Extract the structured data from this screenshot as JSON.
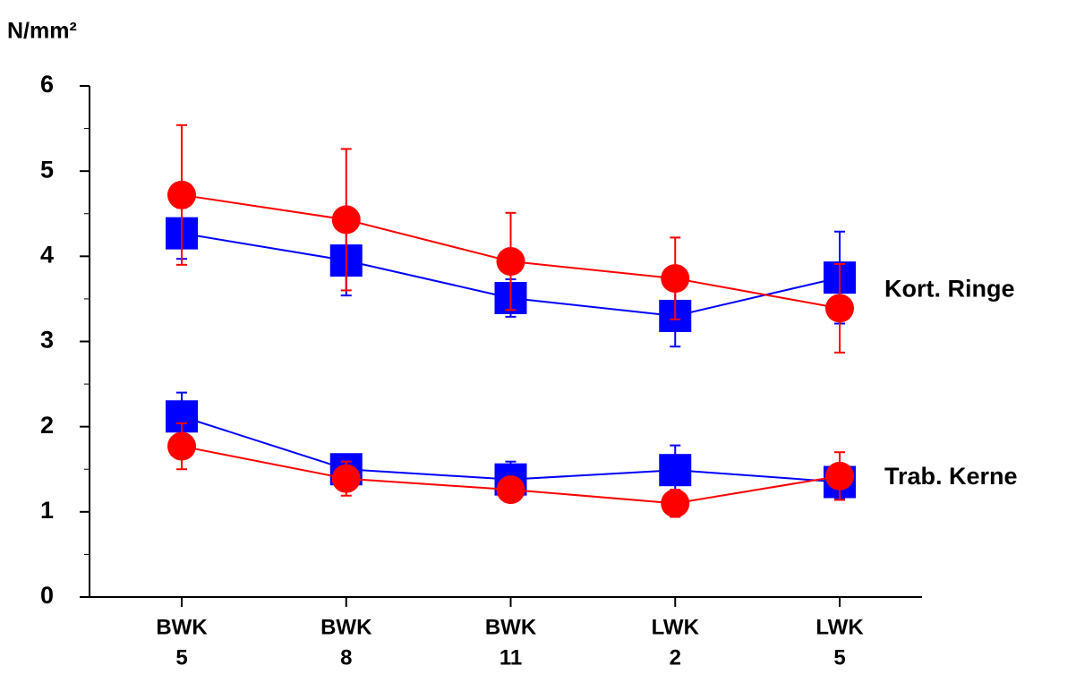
{
  "chart_data": {
    "type": "line",
    "y_label": "N/mm²",
    "categories": [
      [
        "BWK",
        "5"
      ],
      [
        "BWK",
        "8"
      ],
      [
        "BWK",
        "11"
      ],
      [
        "LWK",
        "2"
      ],
      [
        "LWK",
        "5"
      ]
    ],
    "ylim": [
      0,
      6
    ],
    "yticks": [
      0,
      1,
      2,
      3,
      4,
      5,
      6
    ],
    "yminorticks": [
      0.5,
      1.5,
      2.5,
      3.5,
      4.5,
      5.5
    ],
    "series": [
      {
        "color": "#0000ff",
        "marker": "square",
        "values": [
          4.27,
          3.95,
          3.51,
          3.3,
          3.75
        ],
        "errors": [
          0.3,
          0.41,
          0.22,
          0.36,
          0.54
        ]
      },
      {
        "color": "#ff0000",
        "marker": "circle",
        "values": [
          4.72,
          4.43,
          3.94,
          3.74,
          3.39
        ],
        "errors": [
          0.82,
          0.83,
          0.57,
          0.48,
          0.52
        ]
      },
      {
        "color": "#0000ff",
        "marker": "square",
        "values": [
          2.12,
          1.5,
          1.38,
          1.49,
          1.35
        ],
        "errors": [
          0.28,
          0.14,
          0.21,
          0.29,
          0.2
        ]
      },
      {
        "color": "#ff0000",
        "marker": "circle",
        "values": [
          1.77,
          1.39,
          1.26,
          1.1,
          1.42
        ],
        "errors": [
          0.27,
          0.2,
          0.14,
          0.16,
          0.28
        ]
      }
    ],
    "annotations": [
      {
        "text": "Kort. Ringe",
        "y": 3.6
      },
      {
        "text": "Trab. Kerne",
        "y": 1.4
      }
    ]
  }
}
